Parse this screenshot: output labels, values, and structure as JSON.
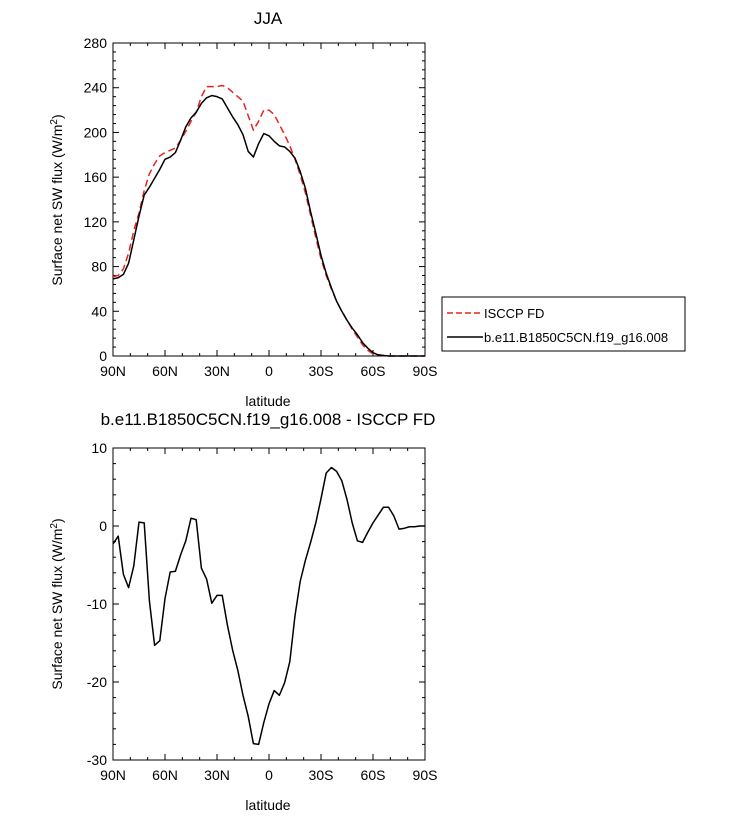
{
  "top_panel": {
    "title": "JJA",
    "ylabel_text": "Surface net SW flux (W/m",
    "ylabel_sup": "2",
    "ylabel_close": ")",
    "xlabel": "latitude"
  },
  "bottom_panel": {
    "title": "b.e11.B1850C5CN.f19_g16.008 - ISCCP FD",
    "ylabel_text": "Surface net SW flux (W/m",
    "ylabel_sup": "2",
    "ylabel_close": ")",
    "xlabel": "latitude"
  },
  "legend": {
    "isccp": "ISCCP FD",
    "model": "b.e11.B1850C5CN.f19_g16.008"
  },
  "colors": {
    "isccp": "#e8231f",
    "model": "#000000"
  },
  "chart_data": [
    {
      "type": "line",
      "title": "JJA",
      "xlabel": "latitude",
      "ylabel": "Surface net SW flux (W/m2)",
      "xlim": [
        90,
        -90
      ],
      "ylim": [
        0,
        280
      ],
      "xticks": [
        90,
        60,
        30,
        0,
        -30,
        -60,
        -90
      ],
      "xtick_labels": [
        "90N",
        "60N",
        "30N",
        "0",
        "30S",
        "60S",
        "90S"
      ],
      "yticks": [
        0,
        40,
        80,
        120,
        160,
        200,
        240,
        280
      ],
      "ytick_labels": [
        "0",
        "40",
        "80",
        "120",
        "160",
        "200",
        "240",
        "280"
      ],
      "legend_position": "right",
      "series": [
        {
          "name": "ISCCP FD",
          "style": "dashed",
          "color": "#e8231f",
          "x": [
            90,
            87,
            84,
            81,
            78,
            75,
            72,
            69,
            66,
            63,
            60,
            57,
            54,
            51,
            48,
            45,
            42,
            39,
            36,
            33,
            30,
            27,
            24,
            21,
            18,
            15,
            12,
            9,
            6,
            3,
            0,
            -3,
            -6,
            -9,
            -12,
            -15,
            -18,
            -21,
            -24,
            -27,
            -30,
            -33,
            -36,
            -39,
            -42,
            -45,
            -48,
            -51,
            -54,
            -57,
            -60,
            -63,
            -66,
            -69,
            -72,
            -75,
            -78,
            -81,
            -84,
            -87,
            -90
          ],
          "y": [
            71,
            72,
            78,
            92,
            112,
            128,
            148,
            163,
            172,
            179,
            182,
            184,
            186,
            193,
            201,
            210,
            218,
            232,
            241,
            241,
            241,
            242,
            240,
            236,
            232,
            228,
            215,
            202,
            210,
            220,
            220,
            216,
            207,
            198,
            188,
            176,
            162,
            146,
            126,
            106,
            87,
            72,
            60,
            49,
            40,
            32,
            24,
            17,
            10,
            5,
            2,
            1,
            0.5,
            0,
            0,
            0,
            0,
            0,
            0,
            0,
            0
          ]
        },
        {
          "name": "b.e11.B1850C5CN.f19_g16.008",
          "style": "solid",
          "color": "#000000",
          "x": [
            90,
            87,
            84,
            81,
            78,
            75,
            72,
            69,
            66,
            63,
            60,
            57,
            54,
            51,
            48,
            45,
            42,
            39,
            36,
            33,
            30,
            27,
            24,
            21,
            18,
            15,
            12,
            9,
            6,
            3,
            0,
            -3,
            -6,
            -9,
            -12,
            -15,
            -18,
            -21,
            -24,
            -27,
            -30,
            -33,
            -36,
            -39,
            -42,
            -45,
            -48,
            -51,
            -54,
            -57,
            -60,
            -63,
            -66,
            -69,
            -72,
            -75,
            -78,
            -81,
            -84,
            -87,
            -90
          ],
          "y": [
            69,
            70,
            73,
            83,
            104,
            125,
            144,
            151,
            159,
            167,
            176,
            178,
            182,
            193,
            205,
            213,
            218,
            226,
            231,
            233,
            232,
            230,
            222,
            214,
            207,
            198,
            183,
            178,
            190,
            199,
            197,
            192,
            188,
            187,
            183,
            177,
            165,
            150,
            129,
            110,
            90,
            74,
            61,
            49,
            40,
            32,
            25,
            19,
            12,
            7,
            3,
            1,
            0.5,
            0,
            0,
            0,
            0,
            0,
            0,
            0,
            0
          ]
        }
      ]
    },
    {
      "type": "line",
      "title": "b.e11.B1850C5CN.f19_g16.008 - ISCCP FD",
      "xlabel": "latitude",
      "ylabel": "Surface net SW flux (W/m2)",
      "xlim": [
        90,
        -90
      ],
      "ylim": [
        -30,
        10
      ],
      "xticks": [
        90,
        60,
        30,
        0,
        -30,
        -60,
        -90
      ],
      "xtick_labels": [
        "90N",
        "60N",
        "30N",
        "0",
        "30S",
        "60S",
        "90S"
      ],
      "yticks": [
        -30,
        -20,
        -10,
        0,
        10
      ],
      "ytick_labels": [
        "-30",
        "-20",
        "-10",
        "0",
        "10"
      ],
      "series": [
        {
          "style": "solid",
          "color": "#000000",
          "x": [
            90,
            87,
            84,
            81,
            78,
            75,
            72,
            69,
            66,
            63,
            60,
            57,
            54,
            51,
            48,
            45,
            42,
            39,
            36,
            33,
            30,
            27,
            24,
            21,
            18,
            15,
            12,
            9,
            6,
            3,
            0,
            -3,
            -6,
            -9,
            -12,
            -15,
            -18,
            -21,
            -24,
            -27,
            -30,
            -33,
            -36,
            -39,
            -42,
            -45,
            -48,
            -51,
            -54,
            -57,
            -60,
            -63,
            -66,
            -69,
            -72,
            -75,
            -78,
            -81,
            -84,
            -87,
            -90
          ],
          "y": [
            -2.3,
            -1.3,
            -6.2,
            -7.9,
            -5.1,
            0.5,
            0.4,
            -9.6,
            -15.3,
            -14.7,
            -9.3,
            -5.9,
            -5.8,
            -3.7,
            -1.9,
            1.0,
            0.8,
            -5.4,
            -6.8,
            -9.9,
            -8.9,
            -8.9,
            -12.7,
            -15.9,
            -18.5,
            -21.7,
            -24.4,
            -27.9,
            -28.0,
            -25.2,
            -22.8,
            -21.1,
            -21.7,
            -20.1,
            -17.4,
            -11.5,
            -7.1,
            -4.4,
            -2.1,
            0.4,
            3.5,
            6.8,
            7.5,
            7.0,
            5.8,
            3.4,
            0.4,
            -1.9,
            -2.1,
            -0.8,
            0.4,
            1.4,
            2.4,
            2.4,
            1.3,
            -0.4,
            -0.3,
            -0.1,
            -0.1,
            0,
            0
          ]
        }
      ]
    }
  ]
}
